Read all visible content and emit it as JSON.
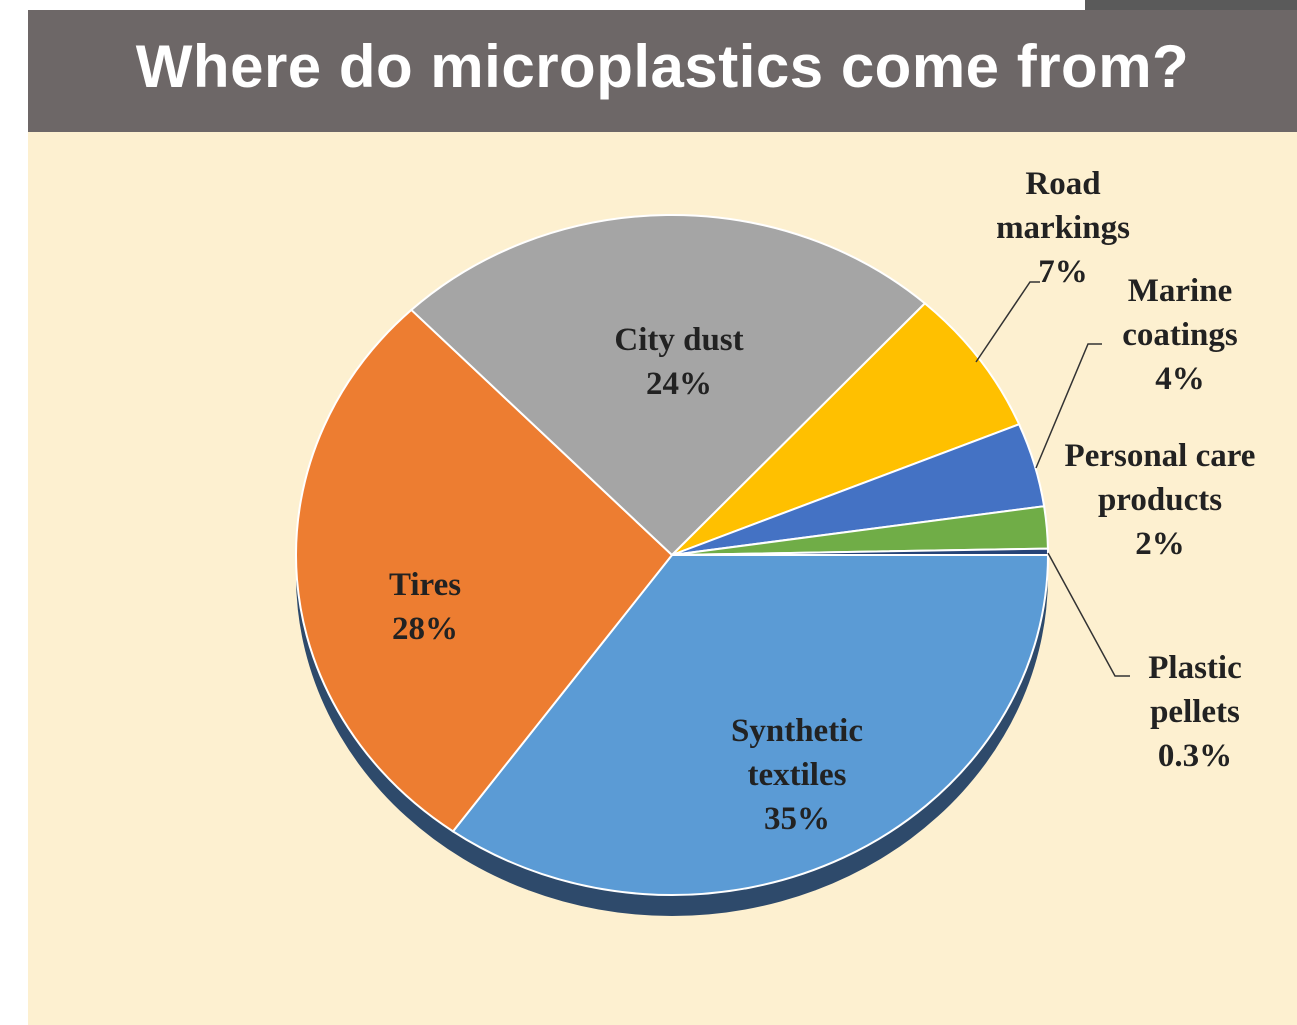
{
  "chart_data": {
    "type": "pie",
    "title": "Where do microplastics come from?",
    "categories": [
      "Synthetic textiles",
      "Tires",
      "City dust",
      "Road markings",
      "Marine coatings",
      "Personal care products",
      "Plastic pellets"
    ],
    "values": [
      35,
      28,
      24,
      7,
      4,
      2,
      0.3
    ],
    "value_labels": [
      "35%",
      "28%",
      "24%",
      "7%",
      "4%",
      "2%",
      "0.3%"
    ],
    "colors": [
      "#5b9bd5",
      "#ed7d31",
      "#a5a5a5",
      "#ffc000",
      "#4472c4",
      "#70ad47",
      "#264478"
    ]
  }
}
